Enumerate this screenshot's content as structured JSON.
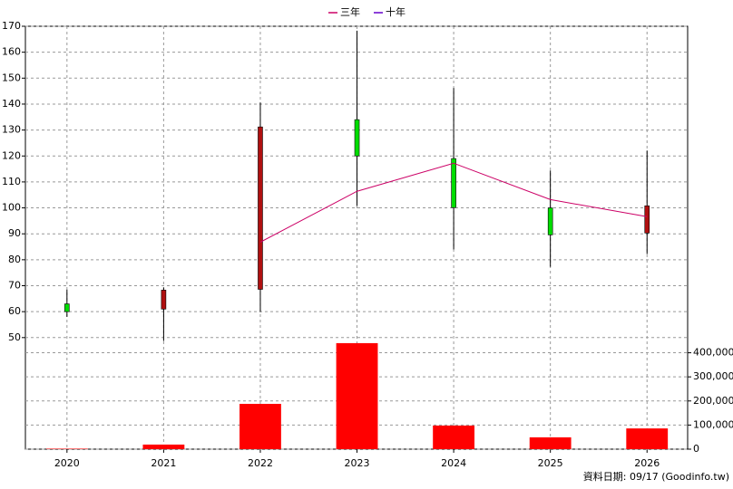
{
  "chart_data": {
    "type": "candlestick",
    "x": [
      2020,
      2021,
      2022,
      2023,
      2024,
      2025,
      2026
    ],
    "xlim": [
      2019.57,
      2026.42
    ],
    "xticks": [
      2020,
      2021,
      2022,
      2023,
      2024,
      2025,
      2026
    ],
    "ylim": [
      7,
      170
    ],
    "yticks": [
      50,
      60,
      70,
      80,
      90,
      100,
      110,
      120,
      130,
      140,
      150,
      160,
      170
    ],
    "y2lim": [
      0,
      1755000
    ],
    "y2ticks": [
      0,
      {
        "value": 100000,
        "label": "100,000"
      },
      {
        "value": 200000,
        "label": "200,000"
      },
      {
        "value": 300000,
        "label": "300,000"
      },
      {
        "value": 400000,
        "label": "400,000"
      }
    ],
    "open": [
      63,
      61,
      68.6,
      134,
      119,
      100,
      90.3
    ],
    "high": [
      68.5,
      69.3,
      140.6,
      168.3,
      146.2,
      114.4,
      122.1
    ],
    "low": [
      58,
      48.7,
      59.9,
      100.8,
      84,
      77.3,
      82.2
    ],
    "close": [
      60,
      68.3,
      131.2,
      120,
      100.1,
      89.6,
      100.8
    ],
    "up_color": "#b01010",
    "down_color": "#00dd00",
    "series": [
      {
        "name": "三年",
        "color": "#cc0066",
        "values": [
          null,
          null,
          86.8,
          106.4,
          117.2,
          103.2,
          96.6
        ]
      },
      {
        "name": "十年",
        "color": "#6600cc",
        "values": [
          null,
          null,
          null,
          null,
          null,
          null,
          null
        ]
      }
    ],
    "volume": {
      "color": "#ff0000",
      "axis": "y2",
      "values": [
        2000,
        19000,
        188000,
        440000,
        98000,
        49000,
        86000
      ]
    },
    "grid": true,
    "legend": "top",
    "annotation": "資料日期: 09/17  (Goodinfo.tw)"
  }
}
